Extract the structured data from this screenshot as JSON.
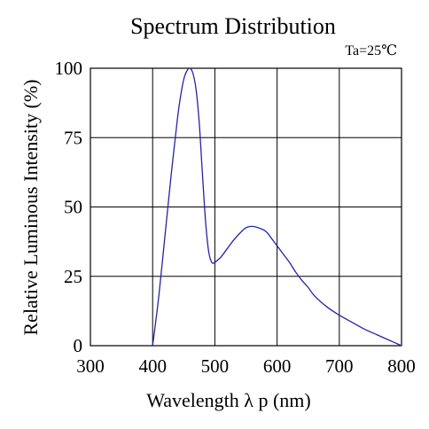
{
  "chart_data": {
    "type": "line",
    "title": "Spectrum Distribution",
    "annotation": "Ta=25℃",
    "xlabel": "Wavelength  λ p (nm)",
    "ylabel": "Relative Luminous Intensity (%)",
    "xlim": [
      300,
      800
    ],
    "ylim": [
      0,
      100
    ],
    "xticks": [
      "300",
      "400",
      "500",
      "600",
      "700",
      "800"
    ],
    "yticks": [
      "0",
      "25",
      "50",
      "75",
      "100"
    ],
    "grid": true,
    "line_color": "#2323a8",
    "series": [
      {
        "x": [
          400,
          410,
          420,
          430,
          440,
          445,
          450,
          455,
          460,
          465,
          470,
          475,
          480,
          485,
          490,
          495,
          500,
          505,
          510,
          520,
          530,
          540,
          550,
          560,
          570,
          580,
          585,
          590,
          600,
          610,
          620,
          630,
          640,
          650,
          660,
          680,
          700,
          720,
          740,
          760,
          780,
          800
        ],
        "y": [
          0,
          18,
          40,
          62,
          82,
          90,
          96,
          99,
          100,
          98,
          92,
          80,
          62,
          45,
          34,
          30,
          30,
          31,
          32,
          35,
          38,
          40.5,
          42.5,
          43,
          42.5,
          41.5,
          40.5,
          39,
          36,
          33,
          30,
          26.5,
          23.5,
          21,
          18,
          14,
          11,
          8.5,
          6,
          4,
          2,
          0
        ]
      }
    ]
  }
}
